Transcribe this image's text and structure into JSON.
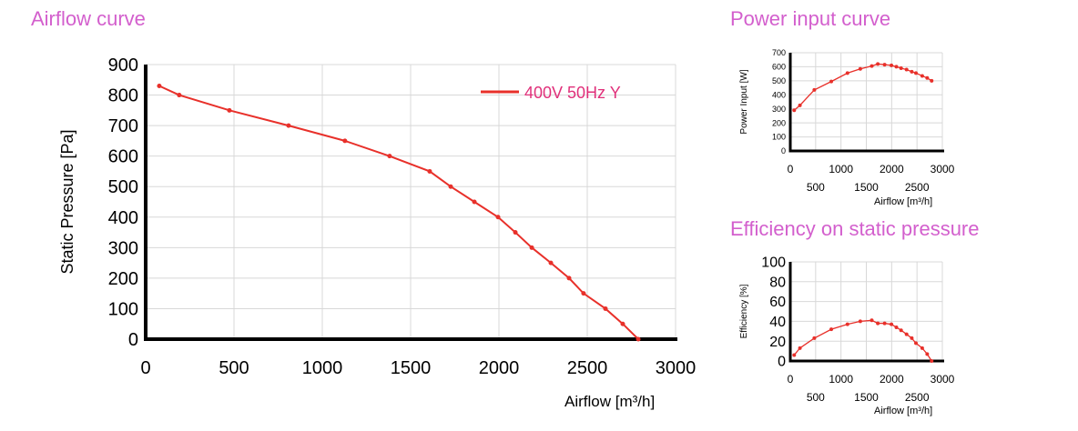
{
  "colors": {
    "line": "#e8302a",
    "title": "#d35fcd",
    "legend": "#e0307a",
    "grid": "#d8d8d8"
  },
  "chart_data": [
    {
      "type": "line",
      "title": "Airflow curve",
      "xlabel": "Airflow [m³/h]",
      "ylabel": "Static Pressure [Pa]",
      "xlim": [
        0,
        3000
      ],
      "ylim": [
        0,
        900
      ],
      "xticks": [
        0,
        500,
        1000,
        1500,
        2000,
        2500,
        3000
      ],
      "yticks": [
        0,
        100,
        200,
        300,
        400,
        500,
        600,
        700,
        800,
        900
      ],
      "grid": true,
      "legend_position": "top-right",
      "series": [
        {
          "name": "400V 50Hz Y",
          "x": [
            77,
            190,
            474,
            809,
            1128,
            1381,
            1608,
            1727,
            1861,
            1995,
            2093,
            2186,
            2294,
            2397,
            2479,
            2603,
            2701,
            2789
          ],
          "y": [
            830,
            800,
            750,
            700,
            650,
            600,
            550,
            500,
            450,
            400,
            350,
            300,
            250,
            200,
            150,
            100,
            50,
            0
          ]
        }
      ]
    },
    {
      "type": "line",
      "title": "Power input curve",
      "xlabel": "Airflow [m³/h]",
      "ylabel": "Power Input [W]",
      "xlim": [
        0,
        3000
      ],
      "ylim": [
        0,
        700
      ],
      "xticks": [
        0,
        500,
        1000,
        1500,
        2000,
        2500,
        3000
      ],
      "yticks": [
        0,
        100,
        200,
        300,
        400,
        500,
        600,
        700
      ],
      "grid": true,
      "series": [
        {
          "name": "400V 50Hz Y",
          "x": [
            77,
            190,
            474,
            809,
            1128,
            1381,
            1608,
            1727,
            1861,
            1995,
            2093,
            2186,
            2294,
            2397,
            2479,
            2603,
            2701,
            2789
          ],
          "y": [
            290,
            325,
            435,
            495,
            555,
            585,
            605,
            620,
            615,
            610,
            600,
            590,
            580,
            565,
            555,
            535,
            520,
            500
          ]
        }
      ]
    },
    {
      "type": "line",
      "title": "Efficiency on static pressure",
      "xlabel": "Airflow [m³/h]",
      "ylabel": "Efficiency  [%]",
      "xlim": [
        0,
        3000
      ],
      "ylim": [
        0,
        100
      ],
      "xticks": [
        0,
        500,
        1000,
        1500,
        2000,
        2500,
        3000
      ],
      "yticks": [
        0,
        20,
        40,
        60,
        80,
        100
      ],
      "grid": true,
      "series": [
        {
          "name": "400V 50Hz Y",
          "x": [
            77,
            190,
            474,
            809,
            1128,
            1381,
            1608,
            1727,
            1861,
            1995,
            2093,
            2186,
            2294,
            2397,
            2479,
            2603,
            2701,
            2789
          ],
          "y": [
            6,
            13,
            23,
            32,
            37,
            40,
            41,
            38,
            38,
            37,
            34,
            31,
            27,
            23,
            18,
            13,
            7,
            0
          ]
        }
      ]
    }
  ]
}
